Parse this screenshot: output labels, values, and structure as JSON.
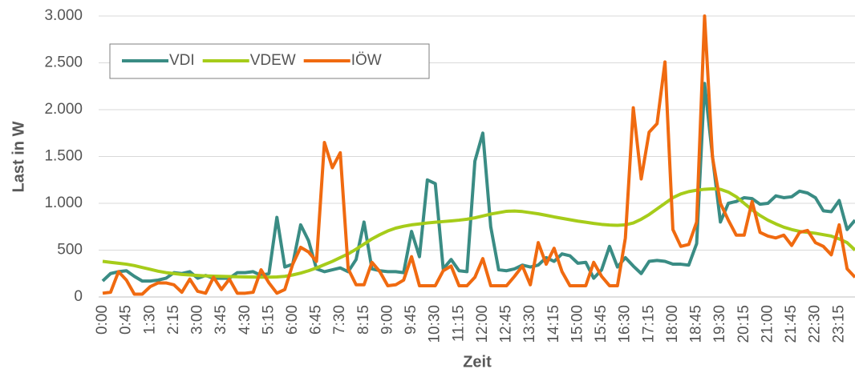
{
  "chart_data": {
    "type": "line",
    "y_label": "Last in W",
    "x_label": "Zeit",
    "categories": [
      "0:00",
      null,
      null,
      "0:45",
      null,
      null,
      "1:30",
      null,
      null,
      "2:15",
      null,
      null,
      "3:00",
      null,
      null,
      "3:45",
      null,
      null,
      "4:30",
      null,
      null,
      "5:15",
      null,
      null,
      "6:00",
      null,
      null,
      "6:45",
      null,
      null,
      "7:30",
      null,
      null,
      "8:15",
      null,
      null,
      "9:00",
      null,
      null,
      "9:45",
      null,
      null,
      "10:30",
      null,
      null,
      "11:15",
      null,
      null,
      "12:00",
      null,
      null,
      "12:45",
      null,
      null,
      "13:30",
      null,
      null,
      "14:15",
      null,
      null,
      "15:00",
      null,
      null,
      "15:45",
      null,
      null,
      "16:30",
      null,
      null,
      "17:15",
      null,
      null,
      "18:00",
      null,
      null,
      "18:45",
      null,
      null,
      "19:30",
      null,
      null,
      "20:15",
      null,
      null,
      "21:00",
      null,
      null,
      "21:45",
      null,
      null,
      "22:30",
      null,
      null,
      "23:15",
      null,
      null
    ],
    "series": [
      {
        "name": "VDI",
        "color": "#3a8c84",
        "values": [
          170,
          250,
          270,
          280,
          220,
          170,
          170,
          180,
          200,
          260,
          250,
          270,
          200,
          230,
          200,
          200,
          200,
          260,
          260,
          270,
          230,
          250,
          850,
          320,
          350,
          770,
          600,
          300,
          270,
          290,
          310,
          270,
          400,
          800,
          300,
          280,
          270,
          270,
          260,
          700,
          430,
          1250,
          1210,
          300,
          400,
          280,
          270,
          1450,
          1750,
          750,
          290,
          280,
          300,
          340,
          320,
          340,
          420,
          380,
          460,
          440,
          360,
          370,
          200,
          290,
          540,
          320,
          420,
          330,
          250,
          380,
          390,
          380,
          350,
          350,
          340,
          570,
          2280,
          1500,
          800,
          1000,
          1020,
          1060,
          1050,
          990,
          1000,
          1080,
          1060,
          1070,
          1130,
          1110,
          1060,
          920,
          910,
          1030,
          720,
          820
        ]
      },
      {
        "name": "VDEW",
        "color": "#a6cc1a",
        "values": [
          380,
          370,
          360,
          350,
          335,
          315,
          295,
          275,
          260,
          250,
          240,
          235,
          230,
          225,
          222,
          220,
          218,
          216,
          214,
          213,
          212,
          212,
          214,
          220,
          235,
          255,
          280,
          310,
          345,
          380,
          420,
          460,
          510,
          565,
          620,
          665,
          705,
          735,
          755,
          770,
          780,
          790,
          798,
          805,
          812,
          820,
          830,
          845,
          865,
          885,
          900,
          915,
          918,
          912,
          900,
          888,
          872,
          855,
          840,
          825,
          810,
          798,
          785,
          775,
          768,
          765,
          770,
          790,
          830,
          880,
          940,
          1000,
          1060,
          1100,
          1125,
          1140,
          1150,
          1155,
          1150,
          1120,
          1070,
          1000,
          930,
          870,
          820,
          780,
          745,
          720,
          700,
          690,
          680,
          665,
          650,
          620,
          580,
          500
        ]
      },
      {
        "name": "IÖW",
        "color": "#f06a10",
        "values": [
          40,
          50,
          270,
          180,
          30,
          30,
          110,
          150,
          150,
          130,
          50,
          190,
          60,
          40,
          210,
          80,
          190,
          40,
          40,
          50,
          290,
          150,
          40,
          80,
          350,
          530,
          480,
          380,
          1650,
          1380,
          1540,
          300,
          130,
          130,
          370,
          270,
          120,
          130,
          180,
          430,
          120,
          120,
          120,
          280,
          330,
          120,
          120,
          210,
          410,
          120,
          120,
          120,
          220,
          330,
          130,
          580,
          350,
          520,
          270,
          120,
          120,
          120,
          370,
          220,
          120,
          120,
          630,
          2020,
          1260,
          1760,
          1850,
          2510,
          720,
          540,
          560,
          800,
          3000,
          1490,
          1000,
          820,
          660,
          660,
          1020,
          690,
          650,
          630,
          660,
          550,
          690,
          710,
          580,
          540,
          450,
          770,
          300,
          210
        ]
      }
    ],
    "ylim": [
      0,
      3000
    ],
    "yticks": [
      0,
      500,
      {
        "value": 1000,
        "label": "1.000"
      },
      {
        "value": 1500,
        "label": "1.500"
      },
      {
        "value": 2000,
        "label": "2.000"
      },
      {
        "value": 2500,
        "label": "2.500"
      },
      {
        "value": 3000,
        "label": "3.000"
      }
    ],
    "grid": true,
    "legend": "top-left"
  }
}
